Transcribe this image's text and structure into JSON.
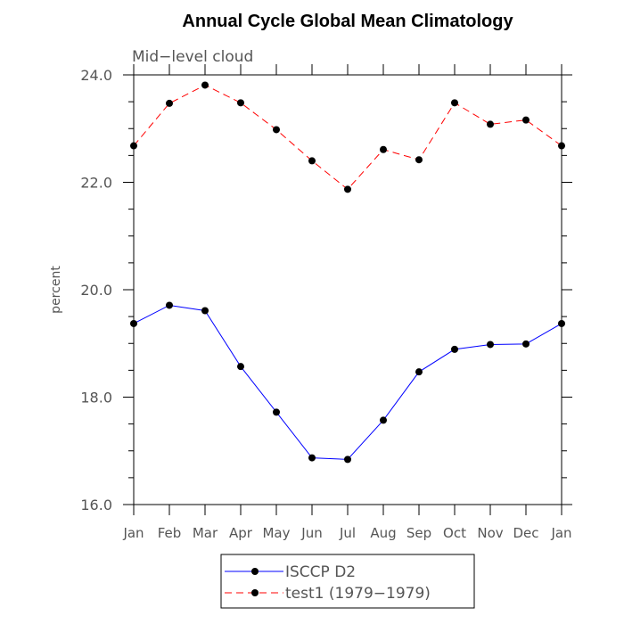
{
  "chart_data": {
    "type": "line",
    "title": "Annual Cycle Global Mean Climatology",
    "subtitle": "Mid−level cloud",
    "xlabel": "",
    "ylabel": "percent",
    "ylim": [
      16.0,
      24.0
    ],
    "y_ticks": [
      "16.0",
      "18.0",
      "20.0",
      "22.0",
      "24.0"
    ],
    "categories": [
      "Jan",
      "Feb",
      "Mar",
      "Apr",
      "May",
      "Jun",
      "Jul",
      "Aug",
      "Sep",
      "Oct",
      "Nov",
      "Dec",
      "Jan"
    ],
    "series": [
      {
        "name": "ISCCP D2",
        "color": "#0000ff",
        "dash": "solid",
        "values": [
          19.37,
          19.71,
          19.61,
          18.57,
          17.72,
          16.87,
          16.84,
          17.57,
          18.47,
          18.89,
          18.98,
          18.99,
          19.37
        ]
      },
      {
        "name": "test1 (1979−1979)",
        "color": "#ff0000",
        "dash": "dashed",
        "values": [
          22.68,
          23.47,
          23.81,
          23.48,
          22.98,
          22.4,
          21.87,
          22.61,
          22.42,
          23.48,
          23.08,
          23.16,
          22.68
        ]
      }
    ],
    "legend": {
      "placement": "bottom-center"
    },
    "grid": false
  }
}
